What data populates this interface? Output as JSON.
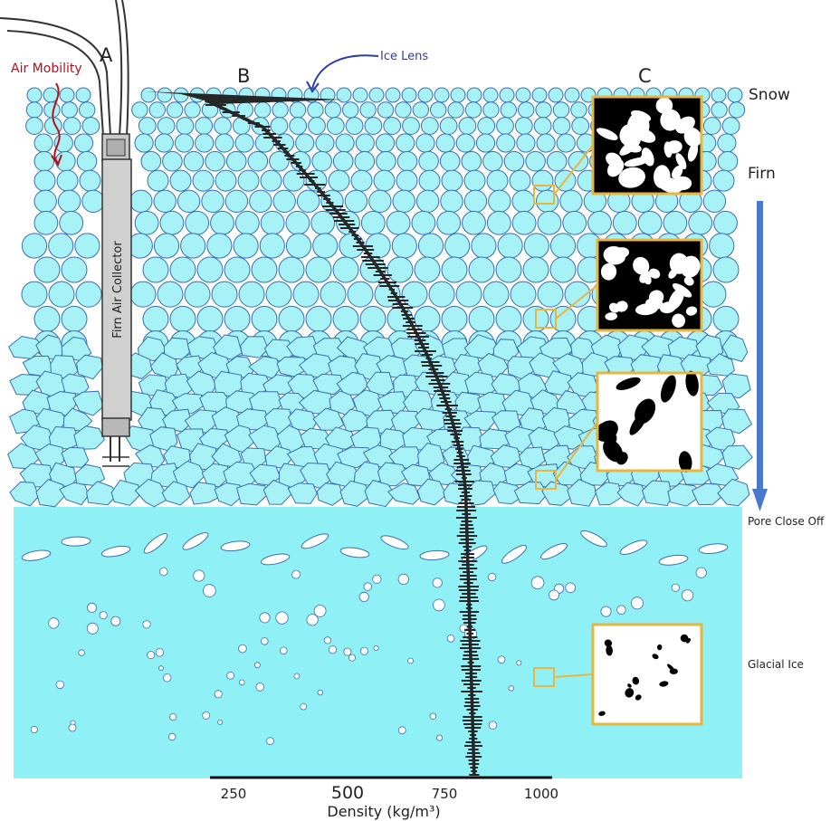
{
  "labels": {
    "a": "A",
    "b": "B",
    "c": "C",
    "air_mobility": "Air Mobility",
    "ice_lens": "Ice Lens",
    "collector": "Firn Air Collector"
  },
  "zones": {
    "snow": "Snow",
    "firn": "Firn",
    "pore_close_off": "Pore Close Off",
    "glacial_ice": "Glacial Ice"
  },
  "axis": {
    "label": "Density (kg/m³)",
    "ticks": [
      "250",
      "500",
      "750",
      "1000"
    ]
  },
  "colors": {
    "ice": "#8ff0f5",
    "grain": "#a6f2f7",
    "grain_stroke": "#3b6fae",
    "profile": "#262626",
    "inset_border": "#e8b53e",
    "arrow": "#4a78cc",
    "air_mobility": "#b3121c",
    "ice_lens": "#2c3ea0"
  }
}
